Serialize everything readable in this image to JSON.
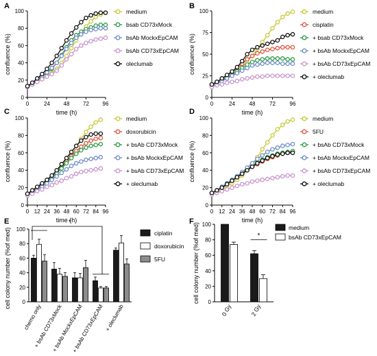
{
  "colors": {
    "medium": "#c9c93a",
    "treatment": "#e0533b",
    "bsab_cd73xmock": "#2e9a45",
    "bsab_mockxepcam": "#6e8cc9",
    "bsab_cd73xepcam": "#c895cc",
    "oleclumab": "#111111",
    "bar_chemo_1": "#1a1a1a",
    "bar_chemo_2": "#ffffff",
    "bar_chemo_3": "#8c8c8c"
  },
  "chart_data": [
    {
      "panel": "A",
      "type": "line",
      "xlabel": "time (h)",
      "ylabel": "confluence (%)",
      "xlim": [
        0,
        96
      ],
      "ylim": [
        0,
        100
      ],
      "xticks": [
        "0",
        "24",
        "48",
        "72",
        "96"
      ],
      "yticks": [
        "0",
        "20",
        "40",
        "60",
        "80",
        "100"
      ],
      "x": [
        0,
        6,
        12,
        18,
        24,
        30,
        36,
        42,
        48,
        54,
        60,
        66,
        72,
        78,
        84,
        90,
        96
      ],
      "legend": "right",
      "series": [
        {
          "name": "medium",
          "color_key": "medium",
          "values": [
            12,
            15,
            18,
            21,
            24,
            28,
            33,
            40,
            48,
            57,
            66,
            74,
            82,
            88,
            93,
            96,
            98
          ]
        },
        {
          "name": "bsab CD73xMock",
          "color_key": "bsab_cd73xmock",
          "values": [
            12,
            16,
            20,
            24,
            28,
            33,
            40,
            49,
            58,
            66,
            72,
            76,
            79,
            81,
            83,
            84,
            84
          ]
        },
        {
          "name": "bsAb MockxEpCAM",
          "color_key": "bsab_mockxepcam",
          "values": [
            13,
            17,
            21,
            25,
            29,
            34,
            40,
            48,
            56,
            63,
            69,
            73,
            76,
            78,
            79,
            80,
            80
          ]
        },
        {
          "name": "bsAb CD73xEpCAM",
          "color_key": "bsab_cd73xepcam",
          "values": [
            12,
            15,
            18,
            21,
            24,
            27,
            31,
            37,
            44,
            50,
            56,
            60,
            63,
            65,
            67,
            68,
            69
          ]
        },
        {
          "name": "oleclumab",
          "color_key": "oleclumab",
          "values": [
            13,
            17,
            22,
            27,
            33,
            40,
            48,
            57,
            66,
            74,
            81,
            87,
            92,
            95,
            97,
            98,
            98
          ]
        }
      ]
    },
    {
      "panel": "B",
      "type": "line",
      "xlabel": "time (h)",
      "ylabel": "confluence (%)",
      "xlim": [
        0,
        96
      ],
      "ylim": [
        0,
        100
      ],
      "xticks": [
        "0",
        "24",
        "48",
        "72",
        "96"
      ],
      "yticks": [
        "0",
        "25",
        "50",
        "75",
        "100"
      ],
      "x": [
        0,
        6,
        12,
        18,
        24,
        30,
        36,
        42,
        48,
        54,
        60,
        66,
        72,
        78,
        84,
        90,
        96
      ],
      "legend": "right",
      "series": [
        {
          "name": "medium",
          "color_key": "medium",
          "values": [
            13,
            16,
            19,
            22,
            26,
            30,
            35,
            41,
            48,
            56,
            64,
            72,
            80,
            87,
            93,
            97,
            99
          ]
        },
        {
          "name": "cisplatin",
          "color_key": "treatment",
          "values": [
            15,
            18,
            21,
            25,
            29,
            34,
            39,
            44,
            48,
            51,
            53,
            55,
            56,
            57,
            58,
            58,
            58
          ]
        },
        {
          "name": "+ bsab CD73xMock",
          "color_key": "bsab_cd73xmock",
          "values": [
            14,
            17,
            20,
            23,
            26,
            30,
            34,
            38,
            41,
            43,
            44,
            45,
            45,
            45,
            45,
            44,
            44
          ]
        },
        {
          "name": "+ bsAb MockxEpCAM",
          "color_key": "bsab_mockxepcam",
          "values": [
            14,
            16,
            19,
            22,
            25,
            28,
            31,
            34,
            37,
            38,
            39,
            40,
            40,
            40,
            39,
            39,
            39
          ]
        },
        {
          "name": "+ bsAb CD73xEpCAM",
          "color_key": "bsab_cd73xepcam",
          "values": [
            12,
            14,
            15,
            17,
            18,
            19,
            21,
            22,
            23,
            24,
            24,
            25,
            25,
            25,
            25,
            25,
            25
          ]
        },
        {
          "name": "+ oleclumab",
          "color_key": "oleclumab",
          "values": [
            15,
            18,
            22,
            26,
            30,
            35,
            42,
            50,
            55,
            58,
            60,
            62,
            64,
            66,
            70,
            72,
            73
          ]
        }
      ]
    },
    {
      "panel": "C",
      "type": "line",
      "xlabel": "time (h)",
      "ylabel": "confluence (%)",
      "xlim": [
        0,
        96
      ],
      "ylim": [
        0,
        100
      ],
      "xticks": [
        "0",
        "12",
        "24",
        "36",
        "48",
        "60",
        "72",
        "84",
        "96"
      ],
      "yticks": [
        "0",
        "20",
        "40",
        "60",
        "80",
        "100"
      ],
      "x": [
        0,
        6,
        12,
        18,
        24,
        30,
        36,
        42,
        48,
        54,
        60,
        66,
        72,
        78,
        84,
        90
      ],
      "legend": "right",
      "series": [
        {
          "name": "medium",
          "color_key": "medium",
          "values": [
            12,
            15,
            19,
            23,
            27,
            32,
            38,
            45,
            52,
            60,
            68,
            76,
            84,
            90,
            95,
            98
          ]
        },
        {
          "name": "doxorubicin",
          "color_key": "treatment",
          "values": [
            13,
            16,
            20,
            24,
            28,
            33,
            38,
            44,
            50,
            56,
            62,
            67,
            71,
            74,
            76,
            77
          ]
        },
        {
          "name": "+ bsAb CD73xMock",
          "color_key": "bsab_cd73xmock",
          "values": [
            13,
            16,
            20,
            24,
            28,
            32,
            37,
            42,
            48,
            54,
            59,
            63,
            66,
            68,
            69,
            70
          ]
        },
        {
          "name": "+ bsAb MockxEpCAM",
          "color_key": "bsab_mockxepcam",
          "values": [
            12,
            15,
            18,
            21,
            25,
            29,
            33,
            37,
            41,
            45,
            48,
            50,
            52,
            53,
            54,
            55
          ]
        },
        {
          "name": "+ bsAb CD73xEpCAM",
          "color_key": "bsab_cd73xepcam",
          "values": [
            11,
            13,
            16,
            18,
            21,
            23,
            26,
            28,
            31,
            33,
            36,
            38,
            39,
            40,
            41,
            42
          ]
        },
        {
          "name": "+ oleclumab",
          "color_key": "oleclumab",
          "values": [
            13,
            17,
            21,
            25,
            29,
            34,
            40,
            47,
            54,
            61,
            68,
            74,
            78,
            81,
            82,
            82
          ]
        }
      ]
    },
    {
      "panel": "D",
      "type": "line",
      "xlabel": "time (h)",
      "ylabel": "confluence (%)",
      "xlim": [
        0,
        96
      ],
      "ylim": [
        0,
        100
      ],
      "xticks": [
        "0",
        "12",
        "24",
        "36",
        "48",
        "60",
        "72",
        "84",
        "96"
      ],
      "yticks": [
        "0",
        "20",
        "40",
        "60",
        "80",
        "100"
      ],
      "x": [
        0,
        6,
        12,
        18,
        24,
        30,
        36,
        42,
        48,
        54,
        60,
        66,
        72,
        78,
        84,
        90,
        96
      ],
      "legend": "right",
      "series": [
        {
          "name": "medium",
          "color_key": "medium",
          "values": [
            12,
            15,
            18,
            22,
            25,
            29,
            34,
            40,
            47,
            55,
            64,
            72,
            80,
            87,
            92,
            96,
            98
          ]
        },
        {
          "name": "5FU",
          "color_key": "treatment",
          "values": [
            14,
            17,
            20,
            24,
            28,
            32,
            36,
            40,
            44,
            47,
            50,
            53,
            55,
            57,
            59,
            60,
            61
          ]
        },
        {
          "name": "+ bsAb CD73xMock",
          "color_key": "bsab_cd73xmock",
          "values": [
            14,
            17,
            21,
            25,
            29,
            33,
            37,
            41,
            45,
            49,
            52,
            55,
            57,
            59,
            60,
            61,
            62
          ]
        },
        {
          "name": "+ bsAb MockxEpCAM",
          "color_key": "bsab_mockxepcam",
          "values": [
            14,
            17,
            21,
            25,
            29,
            33,
            38,
            43,
            48,
            53,
            57,
            61,
            64,
            66,
            68,
            69,
            70
          ]
        },
        {
          "name": "+ bsAb CD73xEpCAM",
          "color_key": "bsab_cd73xepcam",
          "values": [
            12,
            14,
            16,
            18,
            20,
            22,
            24,
            25,
            27,
            28,
            29,
            30,
            31,
            32,
            33,
            34,
            34
          ]
        },
        {
          "name": "+ oleclumab",
          "color_key": "oleclumab",
          "values": [
            14,
            17,
            20,
            24,
            28,
            32,
            36,
            40,
            44,
            48,
            51,
            54,
            56,
            58,
            59,
            60,
            60
          ]
        }
      ]
    },
    {
      "panel": "E",
      "type": "bar",
      "ylabel": "cell colony number (%of med)",
      "ylim": [
        0,
        100
      ],
      "yticks": [
        "0",
        "20",
        "40",
        "60",
        "80",
        "100"
      ],
      "categories": [
        "chemo only",
        "+ bsAb CD73xMock",
        "+ bsAb MockxEpCAM",
        "+ bsAb CD73xEpCAM",
        "+ oleclumab"
      ],
      "legend": "right",
      "series": [
        {
          "name": "ciplatin",
          "color_key": "bar_chemo_1",
          "values": [
            60,
            45,
            33,
            29,
            71
          ],
          "errors": [
            4,
            9,
            7,
            5,
            3
          ]
        },
        {
          "name": "doxorubicin",
          "color_key": "bar_chemo_2",
          "values": [
            79,
            38,
            33,
            19,
            81
          ],
          "errors": [
            7,
            8,
            6,
            2,
            10
          ]
        },
        {
          "name": "5FU",
          "color_key": "bar_chemo_3",
          "values": [
            56,
            35,
            47,
            19,
            52
          ],
          "errors": [
            9,
            5,
            10,
            2,
            7
          ]
        }
      ],
      "annotation": "*"
    },
    {
      "panel": "F",
      "type": "bar",
      "ylabel": "cell colony number (%of med)",
      "ylim": [
        0,
        100
      ],
      "yticks": [
        "0",
        "20",
        "40",
        "60",
        "80",
        "100"
      ],
      "categories": [
        "0 Gy",
        "2 Gy"
      ],
      "legend": "top-right",
      "series": [
        {
          "name": "medium",
          "color_key": "bar_chemo_1",
          "values": [
            100,
            62
          ],
          "errors": [
            0,
            4
          ]
        },
        {
          "name": "bsAb CD73xEpCAM",
          "color_key": "bar_chemo_2",
          "values": [
            74,
            30
          ],
          "errors": [
            3,
            5
          ]
        }
      ],
      "annotation": "*"
    }
  ]
}
